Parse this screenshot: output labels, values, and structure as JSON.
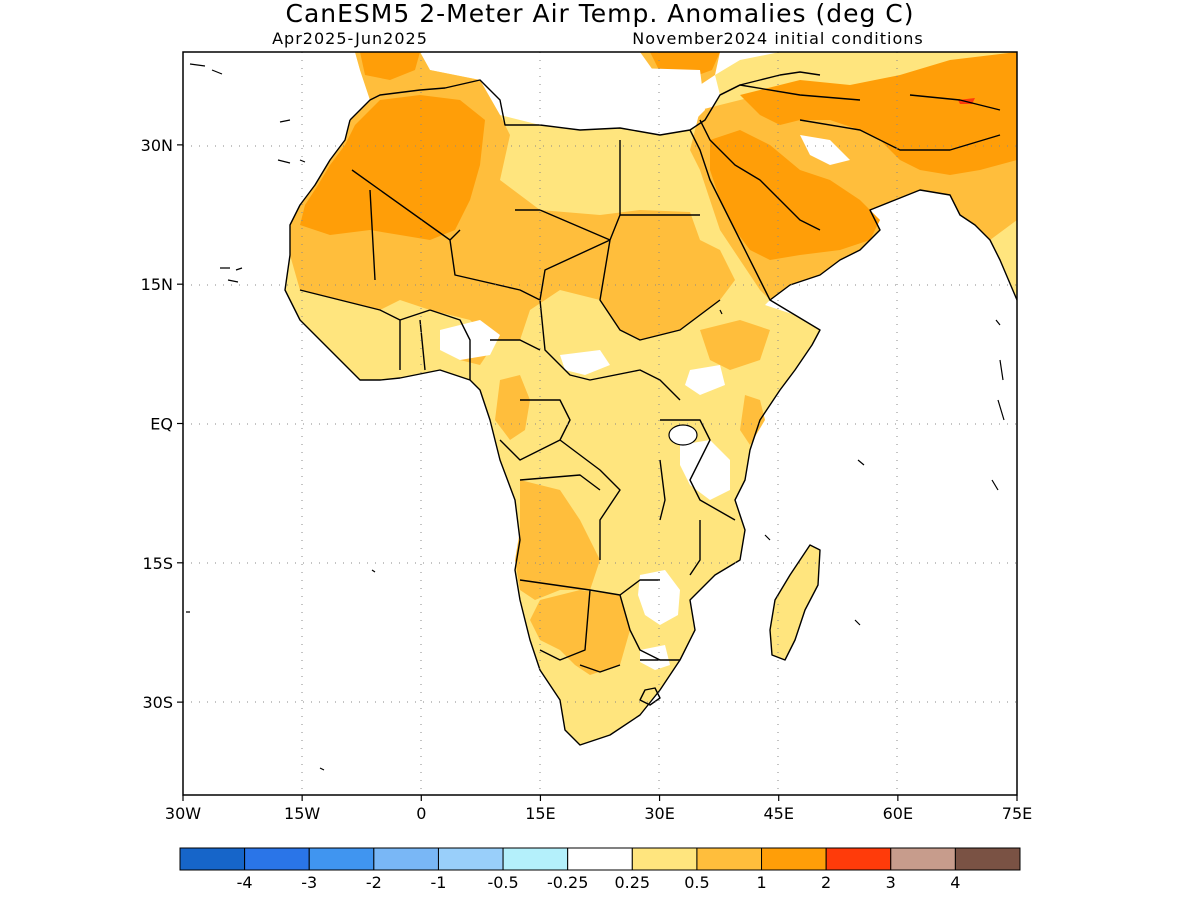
{
  "title": "CanESM5 2-Meter Air Temp. Anomalies (deg C)",
  "subtitle_left": "Apr2025-Jun2025",
  "subtitle_right": "November2024 initial conditions",
  "axes": {
    "lon_range": [
      -30,
      75
    ],
    "lat_range": [
      -40,
      40
    ],
    "x_ticks": [
      {
        "lon": -30,
        "label": "30W"
      },
      {
        "lon": -15,
        "label": "15W"
      },
      {
        "lon": 0,
        "label": "0"
      },
      {
        "lon": 15,
        "label": "15E"
      },
      {
        "lon": 30,
        "label": "30E"
      },
      {
        "lon": 45,
        "label": "45E"
      },
      {
        "lon": 60,
        "label": "60E"
      },
      {
        "lon": 75,
        "label": "75E"
      }
    ],
    "y_ticks": [
      {
        "lat": 30,
        "label": "30N"
      },
      {
        "lat": 15,
        "label": "15N"
      },
      {
        "lat": 0,
        "label": "EQ"
      },
      {
        "lat": -15,
        "label": "15S"
      },
      {
        "lat": -30,
        "label": "30S"
      }
    ],
    "grid": true
  },
  "colorbar": {
    "colors": [
      "#1665c9",
      "#2a75e8",
      "#4095f0",
      "#79b7f6",
      "#99cffa",
      "#b4f0fb",
      "#ffffff",
      "#ffe57e",
      "#ffbe3c",
      "#ff9e08",
      "#ff3b0a",
      "#c79c8c",
      "#7a5244"
    ],
    "labels": [
      "-4",
      "-3",
      "-2",
      "-1",
      "-0.5",
      "-0.25",
      "0.25",
      "0.5",
      "1",
      "2",
      "3",
      "4"
    ]
  },
  "anomaly_classes": [
    {
      "name": "0.25-0.5",
      "color": "#ffe57e"
    },
    {
      "name": "0.5-1",
      "color": "#ffbe3c"
    },
    {
      "name": "1-2",
      "color": "#ff9e08"
    },
    {
      "name": "2-3",
      "color": "#ff3b0a"
    }
  ]
}
